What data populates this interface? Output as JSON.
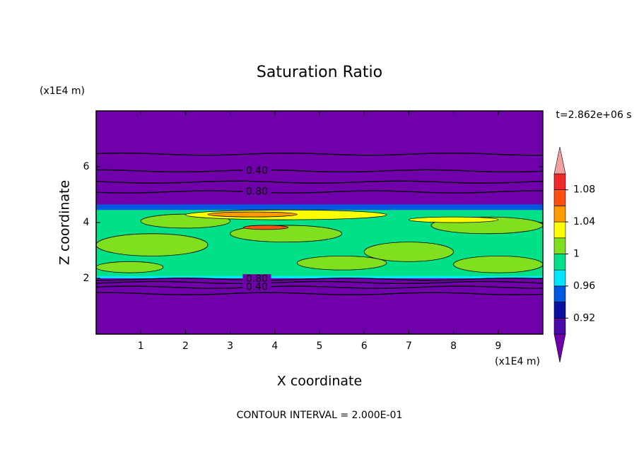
{
  "chart_data": {
    "type": "contour",
    "title": "Saturation Ratio",
    "xlabel": "X coordinate",
    "ylabel": "Z coordinate",
    "x_unit": "(x1E4 m)",
    "y_unit": "(x1E4 m)",
    "time_label": "t=2.862e+06 s",
    "footer": "CONTOUR INTERVAL = 2.000E-01",
    "xlim": [
      0,
      10
    ],
    "ylim": [
      0,
      8
    ],
    "xticks": [
      1,
      2,
      3,
      4,
      5,
      6,
      7,
      8,
      9
    ],
    "yticks": [
      2,
      4,
      6
    ],
    "levels": [
      0.9,
      0.92,
      0.94,
      0.96,
      0.98,
      1,
      1.02,
      1.04,
      1.06,
      1.08,
      1.1
    ],
    "colors": [
      "#4a0aa8",
      "#0a10a0",
      "#0058e0",
      "#00e6ff",
      "#00e088",
      "#80e020",
      "#ffff00",
      "#ff9a00",
      "#ff5010",
      "#f02828"
    ],
    "under_color": "#7000aa",
    "over_color": "#f0a0a0",
    "colorbar_ticks": [
      0.92,
      0.96,
      1,
      1.04,
      1.08
    ],
    "fills": [
      {
        "x": [
          0,
          10
        ],
        "z": [
          2.0,
          4.6
        ],
        "value": 0.99
      },
      {
        "x": [
          0,
          10
        ],
        "z": [
          4.45,
          4.65
        ],
        "value": 0.95
      },
      {
        "x": [
          0,
          10
        ],
        "z": [
          2.0,
          2.08
        ],
        "value": 0.97
      },
      {
        "x": [
          0,
          2.5
        ],
        "z": [
          2.8,
          3.6
        ],
        "value": 1.01
      },
      {
        "x": [
          3,
          5.5
        ],
        "z": [
          3.3,
          3.9
        ],
        "value": 1.01
      },
      {
        "x": [
          6,
          8
        ],
        "z": [
          2.6,
          3.3
        ],
        "value": 1.01
      },
      {
        "x": [
          7.5,
          10
        ],
        "z": [
          3.6,
          4.2
        ],
        "value": 1.01
      },
      {
        "x": [
          1,
          3
        ],
        "z": [
          3.8,
          4.3
        ],
        "value": 1.01
      },
      {
        "x": [
          4.5,
          6.5
        ],
        "z": [
          2.3,
          2.8
        ],
        "value": 1.01
      },
      {
        "x": [
          8,
          10
        ],
        "z": [
          2.2,
          2.8
        ],
        "value": 1.01
      },
      {
        "x": [
          0,
          1.5
        ],
        "z": [
          2.2,
          2.6
        ],
        "value": 1.01
      },
      {
        "x": [
          2,
          6.5
        ],
        "z": [
          4.1,
          4.45
        ],
        "value": 1.03
      },
      {
        "x": [
          7,
          9
        ],
        "z": [
          4.0,
          4.2
        ],
        "value": 1.03
      },
      {
        "x": [
          2.5,
          4.5
        ],
        "z": [
          4.2,
          4.38
        ],
        "value": 1.05
      },
      {
        "x": [
          3.3,
          4.3
        ],
        "z": [
          3.75,
          3.9
        ],
        "value": 1.07
      }
    ],
    "contours": [
      {
        "z": 6.45,
        "level": 0.2
      },
      {
        "z": 5.85,
        "level": 0.4,
        "label": "0.40"
      },
      {
        "z": 5.45,
        "level": 0.6
      },
      {
        "z": 5.1,
        "level": 0.8,
        "label": "0.80"
      },
      {
        "z": 1.97,
        "level": 0.8,
        "label": "0.80"
      },
      {
        "z": 1.85,
        "level": 0.6
      },
      {
        "z": 1.68,
        "level": 0.4,
        "label": "0.40"
      },
      {
        "z": 1.45,
        "level": 0.2
      }
    ]
  }
}
